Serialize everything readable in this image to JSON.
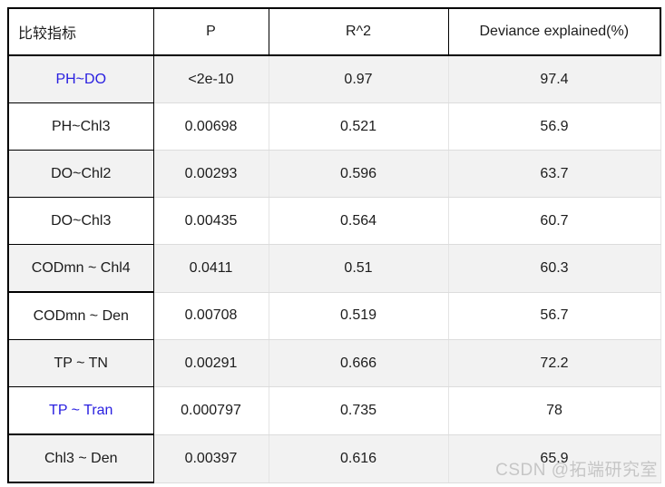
{
  "chart_data": {
    "type": "table",
    "columns": [
      "比较指标",
      "P",
      "R^2",
      "Deviance explained(%)"
    ],
    "rows": [
      {
        "metric": "PH~DO",
        "p": "<2e-10",
        "r2": "0.97",
        "deviance": "97.4",
        "metric_highlighted": true
      },
      {
        "metric": "PH~Chl3",
        "p": "0.00698",
        "r2": "0.521",
        "deviance": "56.9",
        "metric_highlighted": false
      },
      {
        "metric": "DO~Chl2",
        "p": "0.00293",
        "r2": "0.596",
        "deviance": "63.7",
        "metric_highlighted": false
      },
      {
        "metric": "DO~Chl3",
        "p": "0.00435",
        "r2": "0.564",
        "deviance": "60.7",
        "metric_highlighted": false
      },
      {
        "metric": "CODmn ~ Chl4",
        "p": "0.0411",
        "r2": "0.51",
        "deviance": "60.3",
        "metric_highlighted": false
      },
      {
        "metric": "CODmn ~ Den",
        "p": "0.00708",
        "r2": "0.519",
        "deviance": "56.7",
        "metric_highlighted": false
      },
      {
        "metric": "TP ~ TN",
        "p": "0.00291",
        "r2": "0.666",
        "deviance": "72.2",
        "metric_highlighted": false
      },
      {
        "metric": "TP ~ Tran",
        "p": "0.000797",
        "r2": "0.735",
        "deviance": "78",
        "metric_highlighted": true
      },
      {
        "metric": "Chl3 ~ Den",
        "p": "0.00397",
        "r2": "0.616",
        "deviance": "65.9",
        "metric_highlighted": false
      }
    ],
    "layout": {
      "alternating_row_shading": true,
      "first_shaded_row_index": 0
    }
  },
  "colors": {
    "highlight_text": "#2a20e0",
    "alt_row_bg": "#f2f2f2",
    "dark_border": "#000000",
    "light_border": "#dcdcdc",
    "watermark_gray": "#c6c6c6"
  },
  "watermark": {
    "text": "CSDN @拓端研究室"
  }
}
